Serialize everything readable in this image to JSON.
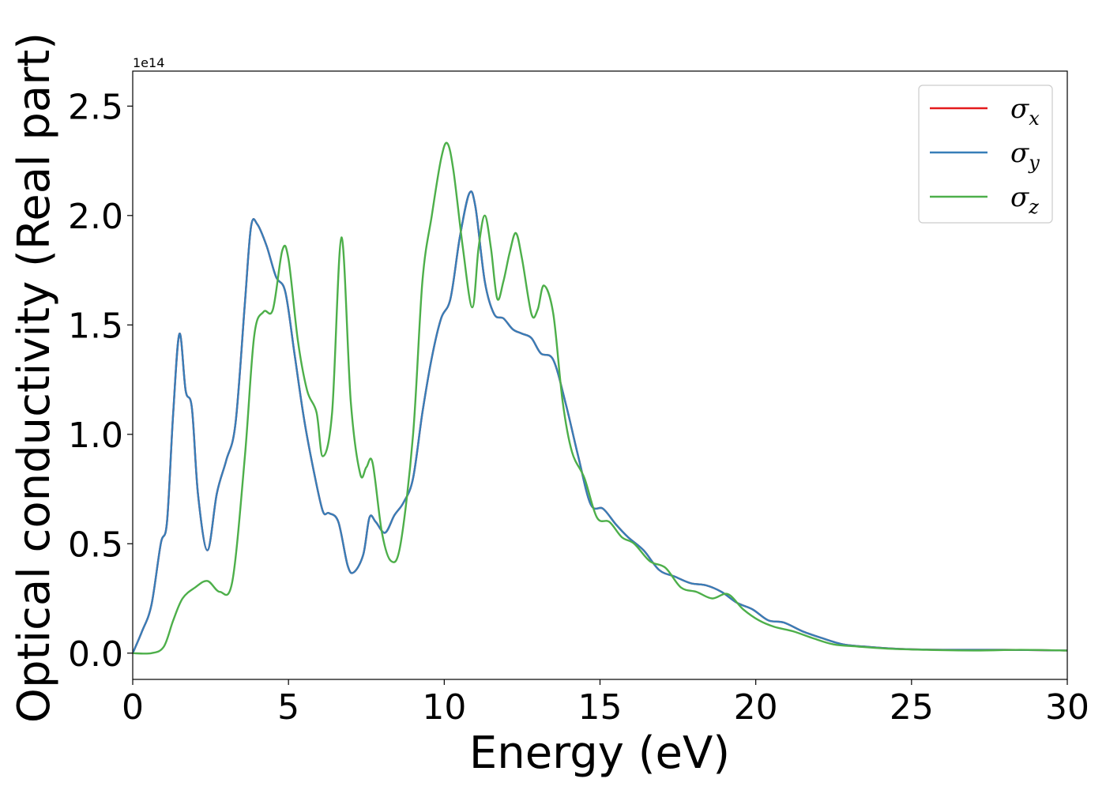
{
  "chart_data": {
    "type": "line",
    "xlabel": "Energy (eV)",
    "ylabel": "Optical conductivity (Real part)",
    "offset_text": "1e14",
    "xlim": [
      0,
      30
    ],
    "ylim": [
      -0.12,
      2.66
    ],
    "grid": false,
    "legend_position": "top-right",
    "x_ticks": [
      0,
      5,
      10,
      15,
      20,
      25,
      30
    ],
    "x_tick_labels": [
      "0",
      "5",
      "10",
      "15",
      "20",
      "25",
      "30"
    ],
    "y_ticks": [
      0.0,
      0.5,
      1.0,
      1.5,
      2.0,
      2.5
    ],
    "y_tick_labels": [
      "0.0",
      "0.5",
      "1.0",
      "1.5",
      "2.0",
      "2.5"
    ],
    "series": [
      {
        "name": "σx",
        "legend_base": "σ",
        "legend_sub": "x",
        "color": "#e41a1c",
        "x": [
          0,
          0.3,
          0.6,
          0.9,
          1.1,
          1.3,
          1.5,
          1.7,
          1.9,
          2.1,
          2.4,
          2.7,
          3.0,
          3.3,
          3.6,
          3.8,
          4.0,
          4.3,
          4.6,
          4.9,
          5.2,
          5.5,
          5.8,
          6.1,
          6.3,
          6.6,
          6.9,
          7.1,
          7.4,
          7.6,
          7.8,
          8.1,
          8.4,
          8.7,
          9.0,
          9.3,
          9.6,
          9.9,
          10.2,
          10.5,
          10.8,
          11.0,
          11.3,
          11.6,
          11.9,
          12.2,
          12.5,
          12.8,
          13.1,
          13.5,
          13.9,
          14.3,
          14.7,
          15.1,
          15.5,
          15.9,
          16.4,
          16.9,
          17.4,
          17.9,
          18.4,
          18.9,
          19.4,
          19.9,
          20.4,
          20.9,
          21.5,
          22.1,
          22.8,
          23.5,
          24.5,
          26,
          28,
          30
        ],
        "y": [
          0.0,
          0.1,
          0.22,
          0.5,
          0.6,
          1.1,
          1.46,
          1.2,
          1.12,
          0.72,
          0.47,
          0.73,
          0.88,
          1.05,
          1.6,
          1.95,
          1.96,
          1.86,
          1.72,
          1.65,
          1.36,
          1.07,
          0.84,
          0.65,
          0.64,
          0.6,
          0.4,
          0.37,
          0.45,
          0.62,
          0.6,
          0.55,
          0.63,
          0.69,
          0.8,
          1.1,
          1.35,
          1.53,
          1.62,
          1.9,
          2.1,
          2.04,
          1.7,
          1.55,
          1.53,
          1.48,
          1.46,
          1.44,
          1.37,
          1.34,
          1.14,
          0.9,
          0.68,
          0.66,
          0.59,
          0.53,
          0.47,
          0.38,
          0.35,
          0.32,
          0.31,
          0.28,
          0.23,
          0.2,
          0.15,
          0.14,
          0.1,
          0.07,
          0.04,
          0.03,
          0.02,
          0.015,
          0.015,
          0.012
        ]
      },
      {
        "name": "σy",
        "legend_base": "σ",
        "legend_sub": "y",
        "color": "#377eb8",
        "x": [
          0,
          0.3,
          0.6,
          0.9,
          1.1,
          1.3,
          1.5,
          1.7,
          1.9,
          2.1,
          2.4,
          2.7,
          3.0,
          3.3,
          3.6,
          3.8,
          4.0,
          4.3,
          4.6,
          4.9,
          5.2,
          5.5,
          5.8,
          6.1,
          6.3,
          6.6,
          6.9,
          7.1,
          7.4,
          7.6,
          7.8,
          8.1,
          8.4,
          8.7,
          9.0,
          9.3,
          9.6,
          9.9,
          10.2,
          10.5,
          10.8,
          11.0,
          11.3,
          11.6,
          11.9,
          12.2,
          12.5,
          12.8,
          13.1,
          13.5,
          13.9,
          14.3,
          14.7,
          15.1,
          15.5,
          15.9,
          16.4,
          16.9,
          17.4,
          17.9,
          18.4,
          18.9,
          19.4,
          19.9,
          20.4,
          20.9,
          21.5,
          22.1,
          22.8,
          23.5,
          24.5,
          26,
          28,
          30
        ],
        "y": [
          0.0,
          0.1,
          0.22,
          0.5,
          0.6,
          1.1,
          1.46,
          1.2,
          1.12,
          0.72,
          0.47,
          0.73,
          0.88,
          1.05,
          1.6,
          1.95,
          1.96,
          1.86,
          1.72,
          1.65,
          1.36,
          1.07,
          0.84,
          0.65,
          0.64,
          0.6,
          0.4,
          0.37,
          0.45,
          0.62,
          0.6,
          0.55,
          0.63,
          0.69,
          0.8,
          1.1,
          1.35,
          1.53,
          1.62,
          1.9,
          2.1,
          2.04,
          1.7,
          1.55,
          1.53,
          1.48,
          1.46,
          1.44,
          1.37,
          1.34,
          1.14,
          0.9,
          0.68,
          0.66,
          0.59,
          0.53,
          0.47,
          0.38,
          0.35,
          0.32,
          0.31,
          0.28,
          0.23,
          0.2,
          0.15,
          0.14,
          0.1,
          0.07,
          0.04,
          0.03,
          0.02,
          0.015,
          0.015,
          0.012
        ]
      },
      {
        "name": "σz",
        "legend_base": "σ",
        "legend_sub": "z",
        "color": "#4daf4a",
        "x": [
          0,
          0.6,
          1.0,
          1.3,
          1.6,
          2.0,
          2.4,
          2.8,
          3.2,
          3.6,
          3.9,
          4.2,
          4.5,
          4.8,
          5.0,
          5.3,
          5.6,
          5.9,
          6.1,
          6.4,
          6.7,
          7.0,
          7.3,
          7.5,
          7.7,
          8.0,
          8.3,
          8.6,
          9.0,
          9.3,
          9.6,
          9.9,
          10.1,
          10.3,
          10.6,
          10.9,
          11.1,
          11.3,
          11.5,
          11.7,
          11.9,
          12.1,
          12.3,
          12.5,
          12.8,
          13.0,
          13.2,
          13.5,
          13.8,
          14.1,
          14.5,
          14.9,
          15.3,
          15.7,
          16.1,
          16.6,
          17.1,
          17.6,
          18.1,
          18.6,
          19.1,
          19.6,
          20.1,
          20.6,
          21.2,
          21.8,
          22.5,
          23.3,
          24.3,
          25.5,
          27,
          28.5,
          30
        ],
        "y": [
          0.0,
          0.0,
          0.03,
          0.15,
          0.25,
          0.3,
          0.33,
          0.28,
          0.33,
          0.9,
          1.45,
          1.56,
          1.57,
          1.84,
          1.8,
          1.43,
          1.2,
          1.1,
          0.9,
          1.1,
          1.9,
          1.15,
          0.82,
          0.85,
          0.87,
          0.55,
          0.42,
          0.5,
          1.0,
          1.7,
          2.0,
          2.26,
          2.33,
          2.2,
          1.85,
          1.58,
          1.85,
          2.0,
          1.85,
          1.62,
          1.7,
          1.83,
          1.92,
          1.8,
          1.55,
          1.57,
          1.68,
          1.55,
          1.15,
          0.92,
          0.8,
          0.62,
          0.6,
          0.53,
          0.5,
          0.42,
          0.39,
          0.3,
          0.28,
          0.25,
          0.27,
          0.2,
          0.15,
          0.12,
          0.1,
          0.07,
          0.04,
          0.03,
          0.02,
          0.015,
          0.012,
          0.015,
          0.012
        ]
      }
    ]
  }
}
